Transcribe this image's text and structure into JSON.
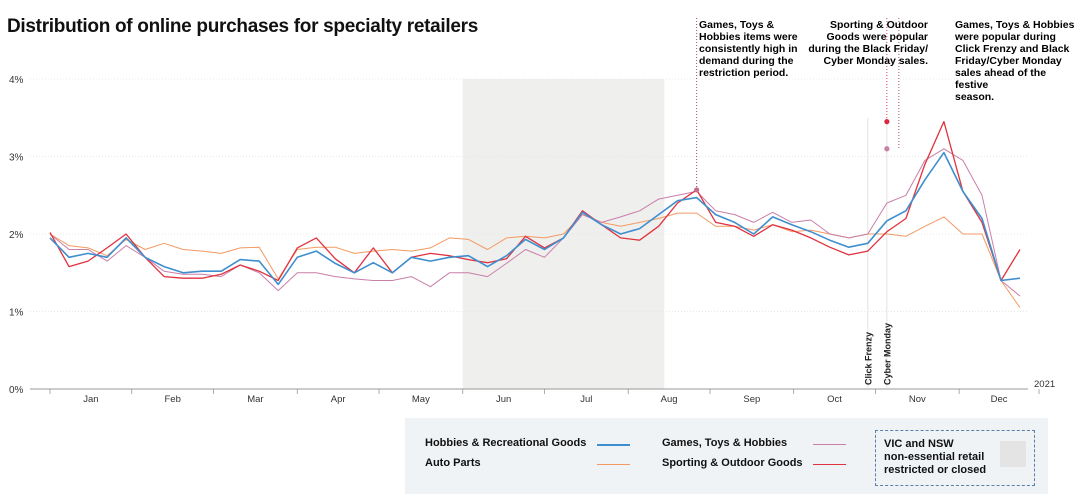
{
  "chart_data": {
    "type": "line",
    "title": "Distribution of online purchases for specialty retailers",
    "ylim": [
      0,
      4
    ],
    "y_ticks": [
      "0%",
      "1%",
      "2%",
      "3%",
      "4%"
    ],
    "months": [
      "Jan",
      "Feb",
      "Mar",
      "Apr",
      "May",
      "Jun",
      "Jul",
      "Aug",
      "Sep",
      "Oct",
      "Nov",
      "Dec"
    ],
    "year_label": "2021",
    "x_unit": "week index 0-50 (weekly data through the year)",
    "month_start_weeks": [
      0,
      4.3,
      8.6,
      13,
      17.3,
      21.7,
      26,
      30.4,
      34.7,
      39.1,
      43.4,
      47.8,
      52
    ],
    "shaded_region": {
      "start": 21.7,
      "end": 32.3,
      "label": "VIC and NSW non-essential retail restricted or closed"
    },
    "events": [
      {
        "label": "Click Frenzy",
        "x": 43.0
      },
      {
        "label": "Cyber Monday",
        "x": 44.0
      }
    ],
    "series": [
      {
        "name": "Hobbies & Recreational Goods",
        "color": "#3f8fcf",
        "width": 1.6,
        "values": [
          1.95,
          1.7,
          1.75,
          1.7,
          1.95,
          1.7,
          1.58,
          1.5,
          1.52,
          1.52,
          1.67,
          1.65,
          1.35,
          1.7,
          1.78,
          1.62,
          1.5,
          1.63,
          1.5,
          1.7,
          1.65,
          1.7,
          1.72,
          1.58,
          1.72,
          1.93,
          1.8,
          1.95,
          2.28,
          2.12,
          2.0,
          2.07,
          2.25,
          2.43,
          2.47,
          2.25,
          2.15,
          2.0,
          2.22,
          2.12,
          2.03,
          1.92,
          1.83,
          1.88,
          2.17,
          2.3,
          2.7,
          3.05,
          2.55,
          2.2,
          1.4,
          1.43
        ]
      },
      {
        "name": "Auto Parts",
        "color": "#f39a63",
        "width": 1.0,
        "values": [
          2.0,
          1.85,
          1.82,
          1.72,
          1.93,
          1.8,
          1.88,
          1.8,
          1.78,
          1.75,
          1.82,
          1.83,
          1.42,
          1.8,
          1.83,
          1.83,
          1.75,
          1.78,
          1.8,
          1.78,
          1.82,
          1.95,
          1.93,
          1.8,
          1.95,
          1.97,
          1.95,
          2.0,
          2.25,
          2.15,
          2.1,
          2.15,
          2.2,
          2.27,
          2.27,
          2.1,
          2.1,
          2.05,
          2.12,
          2.03,
          2.05,
          2.0,
          1.95,
          2.0,
          2.0,
          1.97,
          2.1,
          2.22,
          2.0,
          2.0,
          1.4,
          1.05
        ]
      },
      {
        "name": "Games, Toys & Hobbies",
        "color": "#c97fa8",
        "width": 1.0,
        "values": [
          2.0,
          1.8,
          1.8,
          1.65,
          1.85,
          1.7,
          1.52,
          1.48,
          1.48,
          1.45,
          1.6,
          1.5,
          1.27,
          1.5,
          1.5,
          1.45,
          1.42,
          1.4,
          1.4,
          1.45,
          1.32,
          1.5,
          1.5,
          1.45,
          1.62,
          1.8,
          1.7,
          1.95,
          2.25,
          2.15,
          2.22,
          2.3,
          2.45,
          2.5,
          2.55,
          2.3,
          2.25,
          2.15,
          2.28,
          2.15,
          2.18,
          2.0,
          1.95,
          2.0,
          2.4,
          2.5,
          2.95,
          3.1,
          2.95,
          2.5,
          1.4,
          1.2
        ]
      },
      {
        "name": "Sporting & Outdoor Goods",
        "color": "#e0323e",
        "width": 1.3,
        "values": [
          2.02,
          1.58,
          1.65,
          1.82,
          2.0,
          1.7,
          1.45,
          1.43,
          1.43,
          1.48,
          1.6,
          1.52,
          1.4,
          1.82,
          1.95,
          1.68,
          1.5,
          1.82,
          1.5,
          1.7,
          1.75,
          1.72,
          1.67,
          1.63,
          1.68,
          1.97,
          1.82,
          1.95,
          2.3,
          2.12,
          1.95,
          1.92,
          2.1,
          2.4,
          2.57,
          2.15,
          2.1,
          1.97,
          2.12,
          2.05,
          1.95,
          1.83,
          1.73,
          1.78,
          2.03,
          2.2,
          2.9,
          3.45,
          2.55,
          2.15,
          1.4,
          1.8
        ]
      }
    ],
    "markers": [
      {
        "series": "Games, Toys & Hobbies",
        "x": 34.0,
        "y": 2.57,
        "color": "#c26c8f"
      },
      {
        "series": "Games, Toys & Hobbies",
        "x": 44.0,
        "y": 3.1,
        "color": "#c97fa8"
      },
      {
        "series": "Sporting & Outdoor Goods",
        "x": 44.0,
        "y": 3.45,
        "color": "#d82a44"
      }
    ]
  },
  "annotations": {
    "games_restriction": {
      "lines": [
        "Games, Toys &",
        "Hobbies items were",
        "consistently high in",
        "demand during the",
        "restriction period."
      ],
      "color": "#a8325a"
    },
    "sporting_bf": {
      "lines": [
        "Sporting & Outdoor",
        "Goods were popular",
        "during the Black Friday/",
        "Cyber Monday sales."
      ],
      "color": "#d8283b"
    },
    "games_clickfrenzy": {
      "lines": [
        "Games, Toys & Hobbies",
        "were popular during",
        "Click Frenzy and Black",
        "Friday/Cyber Monday",
        "sales ahead of the festive",
        "season."
      ],
      "color": "#a8325a"
    }
  },
  "legend": {
    "items": [
      {
        "label": "Hobbies & Recreational Goods",
        "color": "#3f8fcf"
      },
      {
        "label": "Auto Parts",
        "color": "#f39a63"
      },
      {
        "label": "Games, Toys & Hobbies",
        "color": "#c97fa8"
      },
      {
        "label": "Sporting & Outdoor Goods",
        "color": "#e0323e"
      }
    ],
    "region_lines": [
      "VIC and NSW",
      "non-essential retail",
      "restricted or closed"
    ],
    "border_color": "#5a7fa8"
  }
}
